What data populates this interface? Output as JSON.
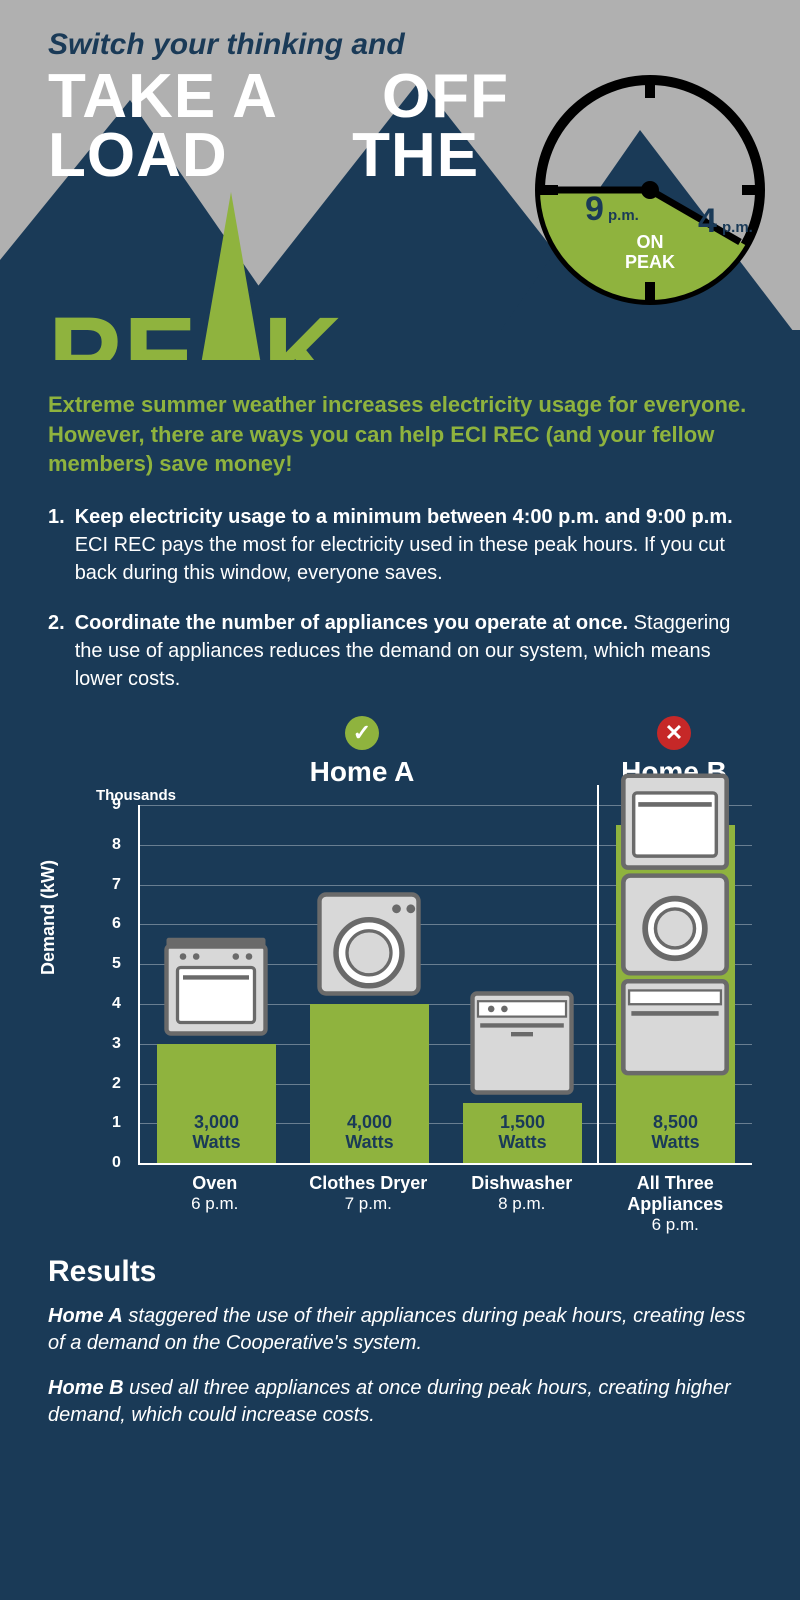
{
  "colors": {
    "bg_navy": "#1a3a57",
    "grey": "#b0b0b0",
    "green": "#8fb33e",
    "white": "#ffffff",
    "red": "#c62828",
    "appliance_body": "#d8d8d8",
    "appliance_dark": "#6a6a6a"
  },
  "hero": {
    "subtitle": "Switch your thinking and",
    "line1_left": "TAKE A",
    "line1_right": "OFF",
    "line2_left": "LOAD",
    "line2_right": "THE",
    "peak_prefix": "PE",
    "peak_suffix": "K"
  },
  "clock": {
    "on_peak_label": "ON PEAK",
    "left_hour": "9",
    "left_suffix": "p.m.",
    "right_hour": "4",
    "right_suffix": "p.m.",
    "radius": 110,
    "stroke": "#000000",
    "stroke_width": 10,
    "fill_peak": "#8fb33e"
  },
  "intro": "Extreme summer weather increases electricity usage for everyone. However, there are ways you can help ECI REC (and your fellow members) save money!",
  "tips": [
    {
      "num": "1.",
      "lead": "Keep electricity usage to a minimum between 4:00 p.m. and 9:00 p.m.",
      "rest": " ECI REC pays the most for electricity used in these peak hours. If you cut back during this window, everyone saves."
    },
    {
      "num": "2.",
      "lead": "Coordinate the number of appliances you operate at once.",
      "rest": " Staggering the use of appliances reduces the demand on our system, which means lower costs."
    }
  ],
  "chart": {
    "home_a_label": "Home A",
    "home_b_label": "Home B",
    "badge_ok": "✓",
    "badge_no": "✕",
    "y_axis_label": "Demand (kW)",
    "thousands_label": "Thousands",
    "y_max": 9,
    "y_ticks": [
      0,
      1,
      2,
      3,
      4,
      5,
      6,
      7,
      8,
      9
    ],
    "bars": [
      {
        "name": "Oven",
        "time": "6 p.m.",
        "watts_label": "3,000\nWatts",
        "value": 3.0,
        "appliance": "oven",
        "group": "A"
      },
      {
        "name": "Clothes Dryer",
        "time": "7 p.m.",
        "watts_label": "4,000\nWatts",
        "value": 4.0,
        "appliance": "dryer",
        "group": "A"
      },
      {
        "name": "Dishwasher",
        "time": "8 p.m.",
        "watts_label": "1,500\nWatts",
        "value": 1.5,
        "appliance": "dishwasher",
        "group": "A"
      },
      {
        "name": "All Three\nAppliances",
        "time": "6 p.m.",
        "watts_label": "8,500\nWatts",
        "value": 8.5,
        "appliance": "stack",
        "group": "B"
      }
    ]
  },
  "results": {
    "heading": "Results",
    "a_lead": "Home A",
    "a_text": " staggered the use of their appliances during peak hours, creating less of a demand on the Cooperative's system.",
    "b_lead": "Home B",
    "b_text": " used all three appliances at once during peak hours, creating higher demand, which could increase costs."
  }
}
